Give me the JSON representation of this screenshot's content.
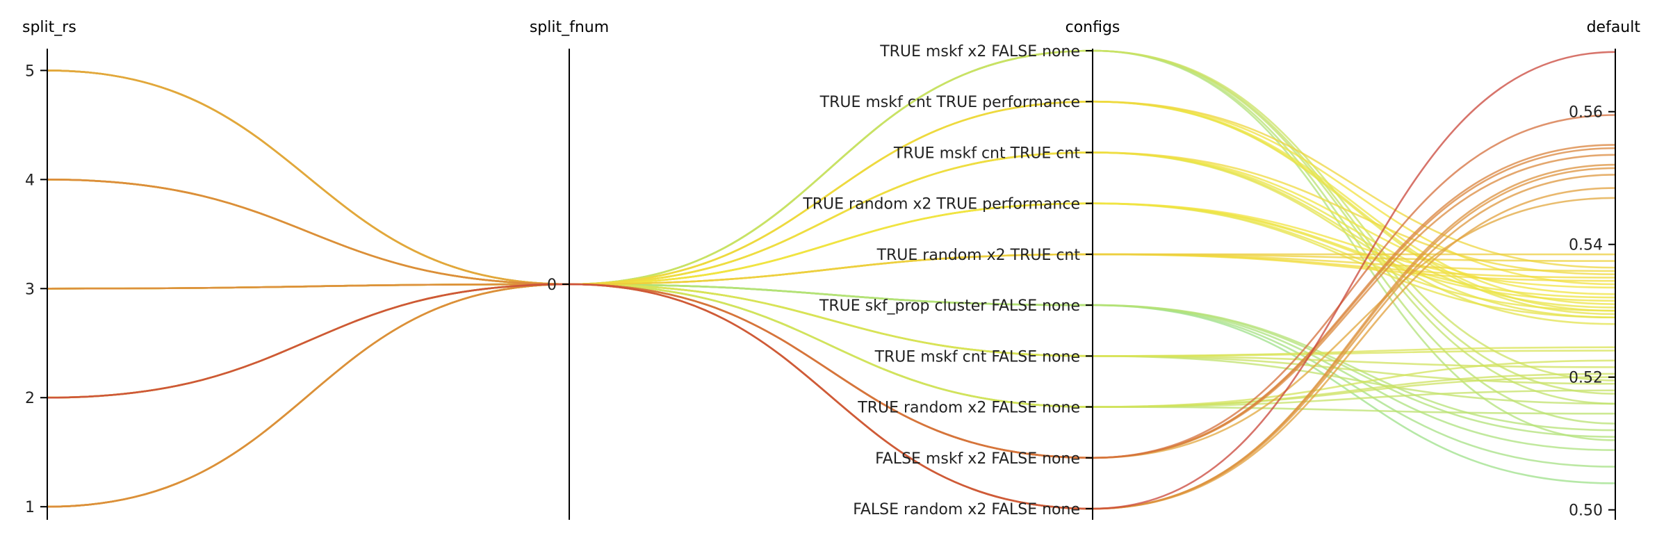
{
  "chart_data": {
    "type": "parallel-coordinates",
    "title": "",
    "axes": [
      {
        "name": "split_rs",
        "kind": "numeric",
        "range": [
          0.88,
          5.2
        ],
        "ticks": [
          1,
          2,
          3,
          4,
          5
        ]
      },
      {
        "name": "split_fnum",
        "kind": "numeric",
        "range": [
          -1,
          1
        ],
        "ticks": [
          0
        ]
      },
      {
        "name": "configs",
        "kind": "categorical",
        "categories": [
          "FALSE random x2 FALSE none",
          "FALSE mskf x2 FALSE none",
          "TRUE random x2 FALSE none",
          "TRUE mskf cnt FALSE none",
          "TRUE skf_prop cluster FALSE none",
          "TRUE random x2 TRUE cnt",
          "TRUE random x2 TRUE performance",
          "TRUE mskf cnt TRUE cnt",
          "TRUE mskf cnt TRUE performance",
          "TRUE mskf x2 FALSE none"
        ]
      },
      {
        "name": "default",
        "kind": "numeric",
        "range": [
          0.4985,
          0.5695
        ],
        "ticks": [
          0.5,
          0.52,
          0.54,
          0.56
        ],
        "tick_labels": [
          "0.50",
          "0.52",
          "0.54",
          "0.56"
        ]
      }
    ],
    "color_scale": {
      "variable": "default",
      "low": "#9ee08a",
      "mid": "#f2e440",
      "high": "#c9453a"
    },
    "records": [
      {
        "split_rs": 1,
        "split_fnum": 0,
        "configs": "FALSE mskf x2 FALSE none",
        "default": 0.5545
      },
      {
        "split_rs": 2,
        "split_fnum": 0,
        "configs": "FALSE mskf x2 FALSE none",
        "default": 0.5595
      },
      {
        "split_rs": 3,
        "split_fnum": 0,
        "configs": "FALSE mskf x2 FALSE none",
        "default": 0.5535
      },
      {
        "split_rs": 4,
        "split_fnum": 0,
        "configs": "FALSE mskf x2 FALSE none",
        "default": 0.555
      },
      {
        "split_rs": 5,
        "split_fnum": 0,
        "configs": "FALSE mskf x2 FALSE none",
        "default": 0.547
      },
      {
        "split_rs": 1,
        "split_fnum": 0,
        "configs": "FALSE random x2 FALSE none",
        "default": 0.552
      },
      {
        "split_rs": 2,
        "split_fnum": 0,
        "configs": "FALSE random x2 FALSE none",
        "default": 0.569
      },
      {
        "split_rs": 3,
        "split_fnum": 0,
        "configs": "FALSE random x2 FALSE none",
        "default": 0.5515
      },
      {
        "split_rs": 4,
        "split_fnum": 0,
        "configs": "FALSE random x2 FALSE none",
        "default": 0.5505
      },
      {
        "split_rs": 5,
        "split_fnum": 0,
        "configs": "FALSE random x2 FALSE none",
        "default": 0.5485
      },
      {
        "split_rs": 1,
        "split_fnum": 0,
        "configs": "TRUE mskf cnt TRUE performance",
        "default": 0.534
      },
      {
        "split_rs": 2,
        "split_fnum": 0,
        "configs": "TRUE mskf cnt TRUE performance",
        "default": 0.531
      },
      {
        "split_rs": 3,
        "split_fnum": 0,
        "configs": "TRUE mskf cnt TRUE performance",
        "default": 0.53
      },
      {
        "split_rs": 4,
        "split_fnum": 0,
        "configs": "TRUE mskf cnt TRUE performance",
        "default": 0.5365
      },
      {
        "split_rs": 5,
        "split_fnum": 0,
        "configs": "TRUE mskf cnt TRUE performance",
        "default": 0.5295
      },
      {
        "split_rs": 1,
        "split_fnum": 0,
        "configs": "TRUE mskf cnt TRUE cnt",
        "default": 0.5355
      },
      {
        "split_rs": 2,
        "split_fnum": 0,
        "configs": "TRUE mskf cnt TRUE cnt",
        "default": 0.5305
      },
      {
        "split_rs": 3,
        "split_fnum": 0,
        "configs": "TRUE mskf cnt TRUE cnt",
        "default": 0.529
      },
      {
        "split_rs": 4,
        "split_fnum": 0,
        "configs": "TRUE mskf cnt TRUE cnt",
        "default": 0.5325
      },
      {
        "split_rs": 5,
        "split_fnum": 0,
        "configs": "TRUE mskf cnt TRUE cnt",
        "default": 0.528
      },
      {
        "split_rs": 1,
        "split_fnum": 0,
        "configs": "TRUE random x2 TRUE performance",
        "default": 0.5335
      },
      {
        "split_rs": 2,
        "split_fnum": 0,
        "configs": "TRUE random x2 TRUE performance",
        "default": 0.532
      },
      {
        "split_rs": 3,
        "split_fnum": 0,
        "configs": "TRUE random x2 TRUE performance",
        "default": 0.5315
      },
      {
        "split_rs": 4,
        "split_fnum": 0,
        "configs": "TRUE random x2 TRUE performance",
        "default": 0.53
      },
      {
        "split_rs": 5,
        "split_fnum": 0,
        "configs": "TRUE random x2 TRUE performance",
        "default": 0.529
      },
      {
        "split_rs": 1,
        "split_fnum": 0,
        "configs": "TRUE random x2 TRUE cnt",
        "default": 0.5375
      },
      {
        "split_rs": 2,
        "split_fnum": 0,
        "configs": "TRUE random x2 TRUE cnt",
        "default": 0.5385
      },
      {
        "split_rs": 3,
        "split_fnum": 0,
        "configs": "TRUE random x2 TRUE cnt",
        "default": 0.536
      },
      {
        "split_rs": 4,
        "split_fnum": 0,
        "configs": "TRUE random x2 TRUE cnt",
        "default": 0.535
      },
      {
        "split_rs": 5,
        "split_fnum": 0,
        "configs": "TRUE random x2 TRUE cnt",
        "default": 0.5345
      },
      {
        "split_rs": 1,
        "split_fnum": 0,
        "configs": "TRUE mskf x2 FALSE none",
        "default": 0.5175
      },
      {
        "split_rs": 2,
        "split_fnum": 0,
        "configs": "TRUE mskf x2 FALSE none",
        "default": 0.516
      },
      {
        "split_rs": 3,
        "split_fnum": 0,
        "configs": "TRUE mskf x2 FALSE none",
        "default": 0.513
      },
      {
        "split_rs": 4,
        "split_fnum": 0,
        "configs": "TRUE mskf x2 FALSE none",
        "default": 0.5195
      },
      {
        "split_rs": 5,
        "split_fnum": 0,
        "configs": "TRUE mskf x2 FALSE none",
        "default": 0.5105
      },
      {
        "split_rs": 1,
        "split_fnum": 0,
        "configs": "TRUE skf_prop cluster FALSE none",
        "default": 0.511
      },
      {
        "split_rs": 2,
        "split_fnum": 0,
        "configs": "TRUE skf_prop cluster FALSE none",
        "default": 0.5065
      },
      {
        "split_rs": 3,
        "split_fnum": 0,
        "configs": "TRUE skf_prop cluster FALSE none",
        "default": 0.504
      },
      {
        "split_rs": 4,
        "split_fnum": 0,
        "configs": "TRUE skf_prop cluster FALSE none",
        "default": 0.509
      },
      {
        "split_rs": 5,
        "split_fnum": 0,
        "configs": "TRUE skf_prop cluster FALSE none",
        "default": 0.512
      },
      {
        "split_rs": 1,
        "split_fnum": 0,
        "configs": "TRUE mskf cnt FALSE none",
        "default": 0.5245
      },
      {
        "split_rs": 2,
        "split_fnum": 0,
        "configs": "TRUE mskf cnt FALSE none",
        "default": 0.5215
      },
      {
        "split_rs": 3,
        "split_fnum": 0,
        "configs": "TRUE mskf cnt FALSE none",
        "default": 0.519
      },
      {
        "split_rs": 4,
        "split_fnum": 0,
        "configs": "TRUE mskf cnt FALSE none",
        "default": 0.524
      },
      {
        "split_rs": 5,
        "split_fnum": 0,
        "configs": "TRUE mskf cnt FALSE none",
        "default": 0.516
      },
      {
        "split_rs": 1,
        "split_fnum": 0,
        "configs": "TRUE random x2 FALSE none",
        "default": 0.5225
      },
      {
        "split_rs": 2,
        "split_fnum": 0,
        "configs": "TRUE random x2 FALSE none",
        "default": 0.52
      },
      {
        "split_rs": 3,
        "split_fnum": 0,
        "configs": "TRUE random x2 FALSE none",
        "default": 0.5145
      },
      {
        "split_rs": 4,
        "split_fnum": 0,
        "configs": "TRUE random x2 FALSE none",
        "default": 0.5205
      },
      {
        "split_rs": 5,
        "split_fnum": 0,
        "configs": "TRUE random x2 FALSE none",
        "default": 0.518
      }
    ]
  }
}
